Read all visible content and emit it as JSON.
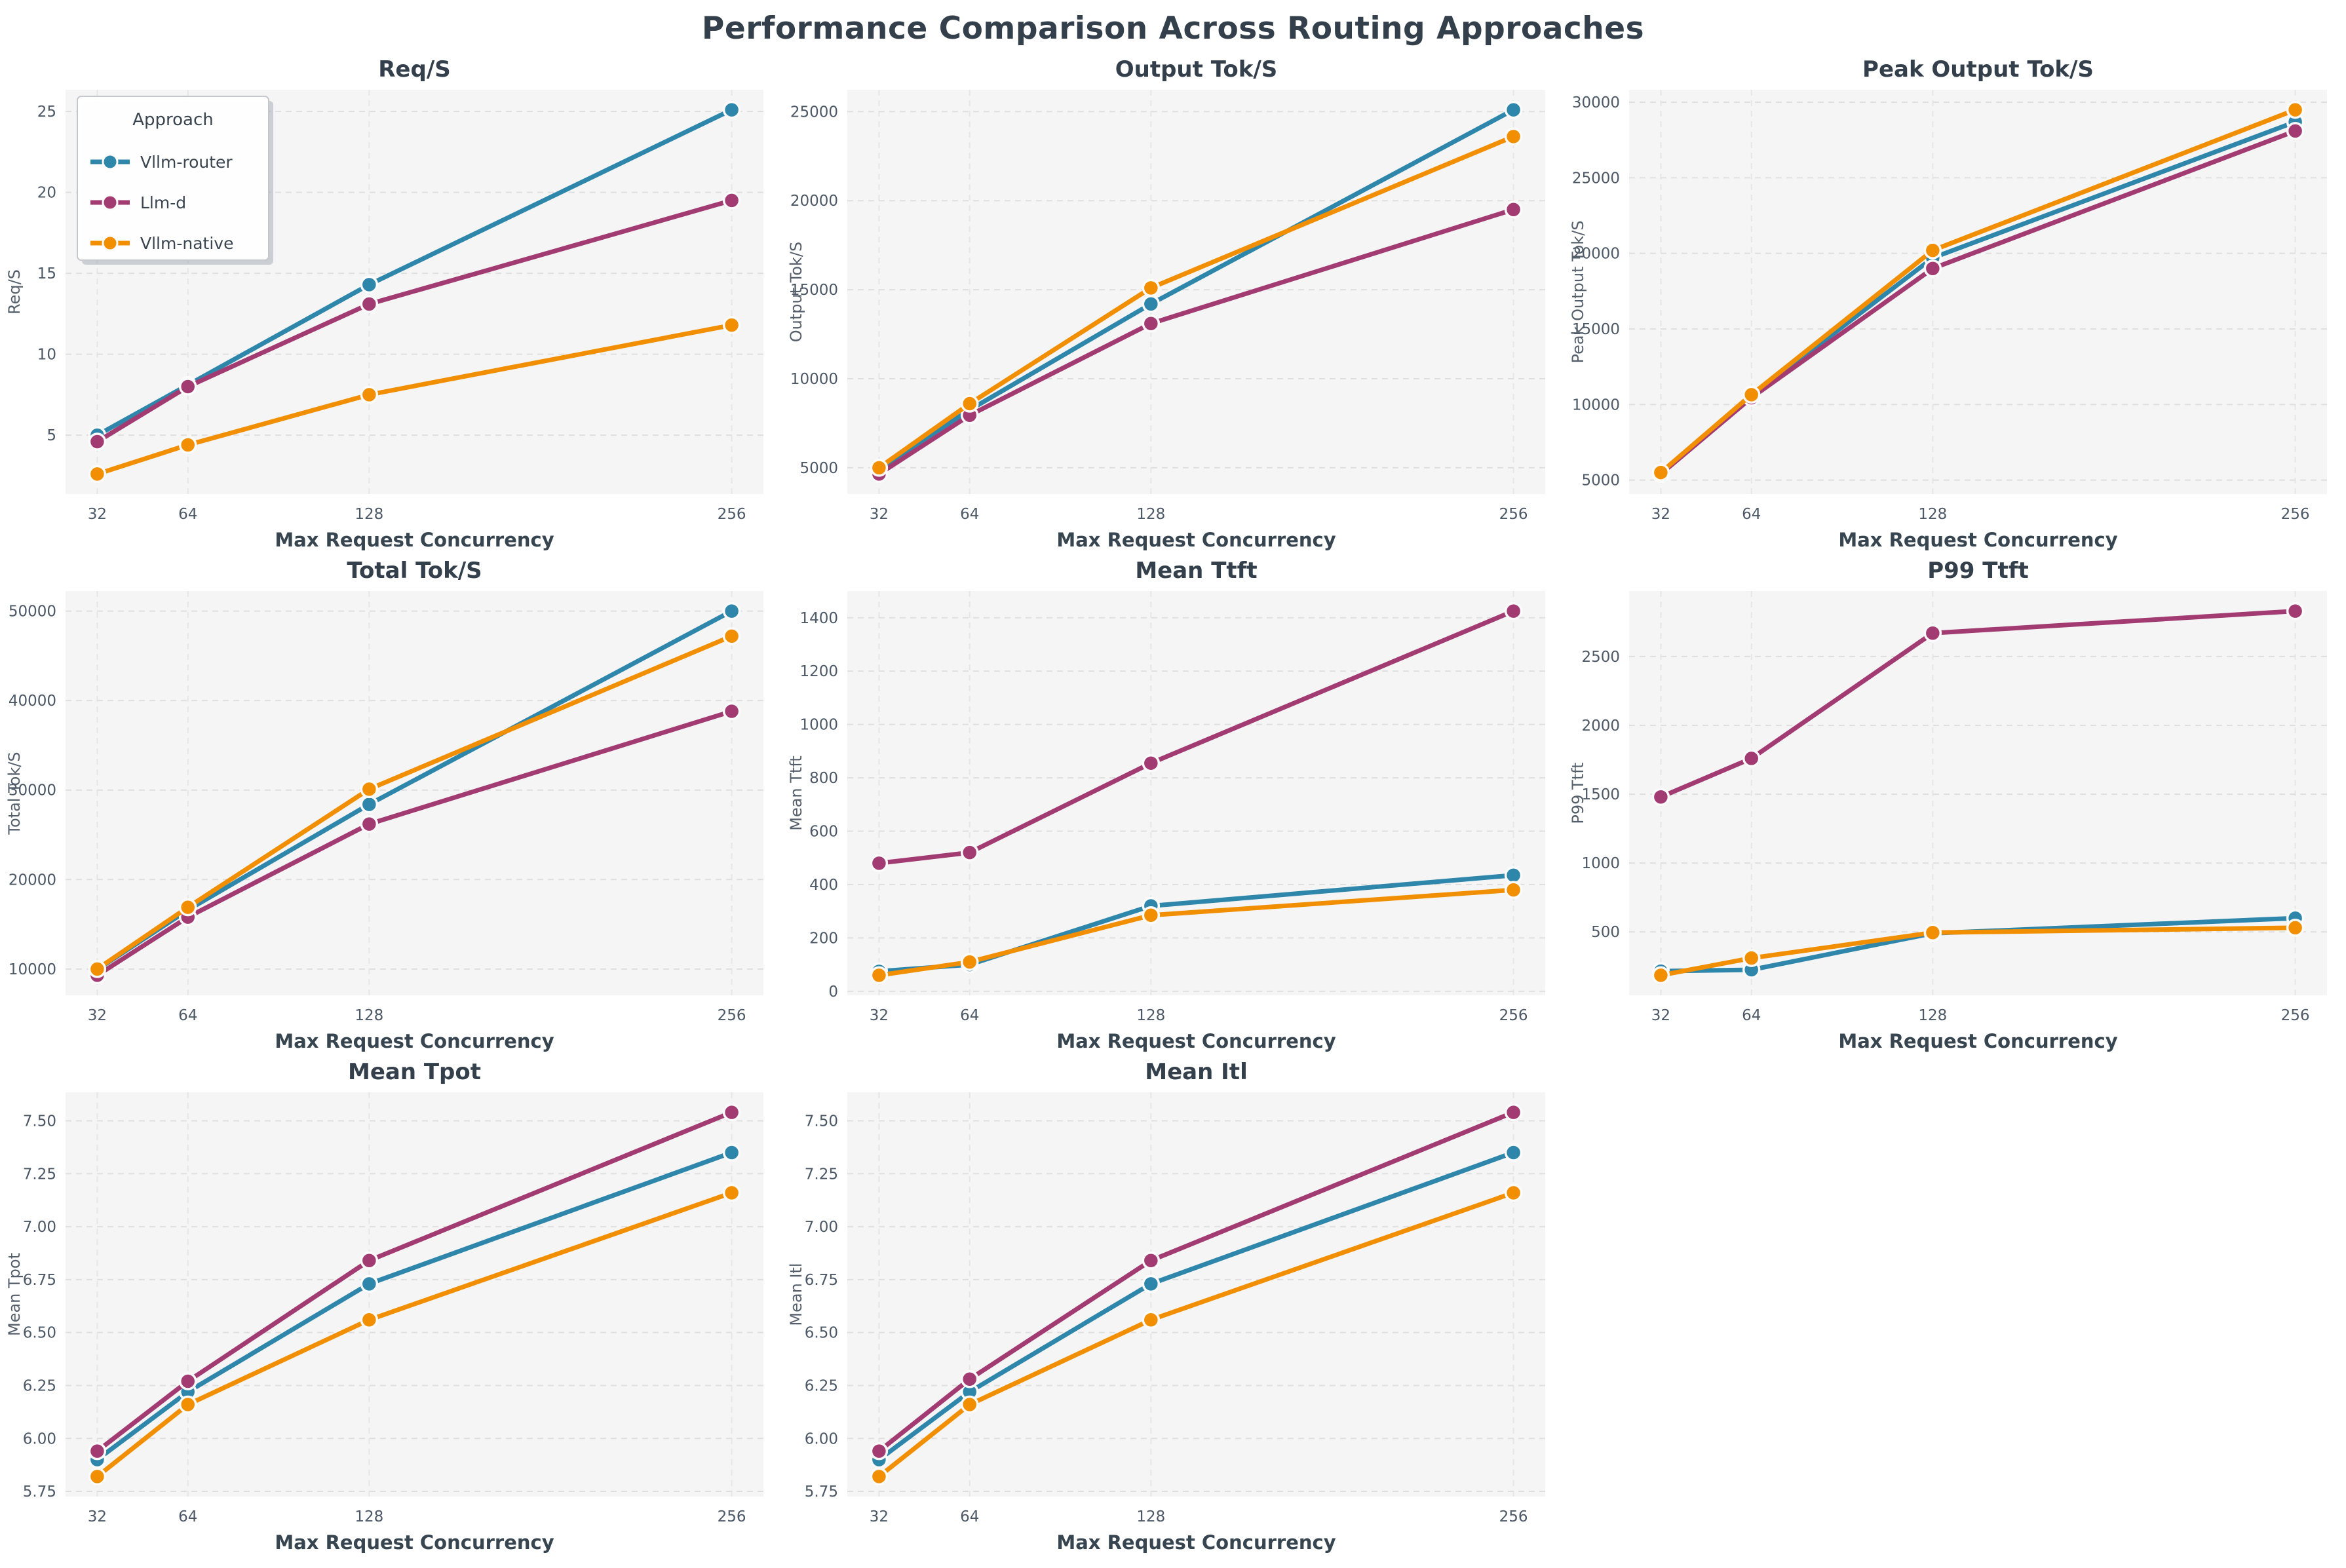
{
  "page_title": "Performance Comparison Across Routing Approaches",
  "x_axis": {
    "label": "Max Request Concurrency",
    "ticks": [
      32,
      64,
      128,
      256
    ],
    "tick_labels": [
      "32",
      "64",
      "128",
      "256"
    ]
  },
  "legend": {
    "title": "Approach",
    "entries": [
      {
        "label": "Vllm-router",
        "color": "#2E86AB"
      },
      {
        "label": "Llm-d",
        "color": "#A23B72"
      },
      {
        "label": "Vllm-native",
        "color": "#F18F01"
      }
    ]
  },
  "colors": {
    "figure_bg": "#FFFFFF",
    "plot_bg": "#F5F5F6",
    "grid": "#DFDFDF",
    "title_text": "#333F4B",
    "tick_text": "#4C5866",
    "series_blue": "#2E86AB",
    "series_magenta": "#A23B72",
    "series_orange": "#F18F01"
  },
  "chart_data": [
    {
      "type": "line",
      "title": "Req/S",
      "ylabel": "Req/S",
      "xlabel": "Max Request Concurrency",
      "x": [
        32,
        64,
        128,
        256
      ],
      "yticks": [
        5,
        10,
        15,
        20,
        25
      ],
      "ytick_labels": [
        "5",
        "10",
        "15",
        "20",
        "25"
      ],
      "show_legend": true,
      "series": [
        {
          "name": "Vllm-router",
          "color": "#2E86AB",
          "values": [
            5.0,
            8.1,
            14.3,
            25.1
          ]
        },
        {
          "name": "Llm-d",
          "color": "#A23B72",
          "values": [
            4.6,
            8.0,
            13.1,
            19.5
          ]
        },
        {
          "name": "Vllm-native",
          "color": "#F18F01",
          "values": [
            2.6,
            4.4,
            7.5,
            11.8
          ]
        }
      ]
    },
    {
      "type": "line",
      "title": "Output Tok/S",
      "ylabel": "Output Tok/S",
      "xlabel": "Max Request Concurrency",
      "x": [
        32,
        64,
        128,
        256
      ],
      "yticks": [
        5000,
        10000,
        15000,
        20000,
        25000
      ],
      "ytick_labels": [
        "5000",
        "10000",
        "15000",
        "20000",
        "25000"
      ],
      "show_legend": false,
      "series": [
        {
          "name": "Vllm-router",
          "color": "#2E86AB",
          "values": [
            4950,
            8250,
            14200,
            25100
          ]
        },
        {
          "name": "Llm-d",
          "color": "#A23B72",
          "values": [
            4650,
            7950,
            13100,
            19500
          ]
        },
        {
          "name": "Vllm-native",
          "color": "#F18F01",
          "values": [
            5000,
            8600,
            15100,
            23600
          ]
        }
      ]
    },
    {
      "type": "line",
      "title": "Peak Output Tok/S",
      "ylabel": "Peak Output Tok/S",
      "xlabel": "Max Request Concurrency",
      "x": [
        32,
        64,
        128,
        256
      ],
      "yticks": [
        5000,
        10000,
        15000,
        20000,
        25000,
        30000
      ],
      "ytick_labels": [
        "5000",
        "10000",
        "15000",
        "20000",
        "25000",
        "30000"
      ],
      "show_legend": false,
      "series": [
        {
          "name": "Vllm-router",
          "color": "#2E86AB",
          "values": [
            5450,
            10550,
            19700,
            28700
          ]
        },
        {
          "name": "Llm-d",
          "color": "#A23B72",
          "values": [
            5400,
            10450,
            19000,
            28100
          ]
        },
        {
          "name": "Vllm-native",
          "color": "#F18F01",
          "values": [
            5500,
            10650,
            20200,
            29500
          ]
        }
      ]
    },
    {
      "type": "line",
      "title": "Total Tok/S",
      "ylabel": "Total Tok/S",
      "xlabel": "Max Request Concurrency",
      "x": [
        32,
        64,
        128,
        256
      ],
      "yticks": [
        10000,
        20000,
        30000,
        40000,
        50000
      ],
      "ytick_labels": [
        "10000",
        "20000",
        "30000",
        "40000",
        "50000"
      ],
      "show_legend": false,
      "series": [
        {
          "name": "Vllm-router",
          "color": "#2E86AB",
          "values": [
            9950,
            16600,
            28400,
            50000
          ]
        },
        {
          "name": "Llm-d",
          "color": "#A23B72",
          "values": [
            9300,
            15800,
            26200,
            38800
          ]
        },
        {
          "name": "Vllm-native",
          "color": "#F18F01",
          "values": [
            10000,
            16900,
            30100,
            47200
          ]
        }
      ]
    },
    {
      "type": "line",
      "title": "Mean Ttft",
      "ylabel": "Mean Ttft",
      "xlabel": "Max Request Concurrency",
      "x": [
        32,
        64,
        128,
        256
      ],
      "yticks": [
        0,
        200,
        400,
        600,
        800,
        1000,
        1200,
        1400
      ],
      "ytick_labels": [
        "0",
        "200",
        "400",
        "600",
        "800",
        "1000",
        "1200",
        "1400"
      ],
      "show_legend": false,
      "series": [
        {
          "name": "Vllm-router",
          "color": "#2E86AB",
          "values": [
            75,
            100,
            320,
            435
          ]
        },
        {
          "name": "Llm-d",
          "color": "#A23B72",
          "values": [
            480,
            520,
            855,
            1425
          ]
        },
        {
          "name": "Vllm-native",
          "color": "#F18F01",
          "values": [
            60,
            110,
            285,
            380
          ]
        }
      ]
    },
    {
      "type": "line",
      "title": "P99 Ttft",
      "ylabel": "P99 Ttft",
      "xlabel": "Max Request Concurrency",
      "x": [
        32,
        64,
        128,
        256
      ],
      "yticks": [
        500,
        1000,
        1500,
        2000,
        2500
      ],
      "ytick_labels": [
        "500",
        "1000",
        "1500",
        "2000",
        "2500"
      ],
      "show_legend": false,
      "series": [
        {
          "name": "Vllm-router",
          "color": "#2E86AB",
          "values": [
            215,
            225,
            490,
            600
          ]
        },
        {
          "name": "Llm-d",
          "color": "#A23B72",
          "values": [
            1480,
            1760,
            2670,
            2830
          ]
        },
        {
          "name": "Vllm-native",
          "color": "#F18F01",
          "values": [
            185,
            310,
            495,
            530
          ]
        }
      ]
    },
    {
      "type": "line",
      "title": "Mean Tpot",
      "ylabel": "Mean Tpot",
      "xlabel": "Max Request Concurrency",
      "x": [
        32,
        64,
        128,
        256
      ],
      "yticks": [
        5.75,
        6.0,
        6.25,
        6.5,
        6.75,
        7.0,
        7.25,
        7.5
      ],
      "ytick_labels": [
        "5.75",
        "6.00",
        "6.25",
        "6.50",
        "6.75",
        "7.00",
        "7.25",
        "7.50"
      ],
      "show_legend": false,
      "series": [
        {
          "name": "Vllm-router",
          "color": "#2E86AB",
          "values": [
            5.9,
            6.22,
            6.73,
            7.35
          ]
        },
        {
          "name": "Llm-d",
          "color": "#A23B72",
          "values": [
            5.94,
            6.27,
            6.84,
            7.54
          ]
        },
        {
          "name": "Vllm-native",
          "color": "#F18F01",
          "values": [
            5.82,
            6.16,
            6.56,
            7.16
          ]
        }
      ]
    },
    {
      "type": "line",
      "title": "Mean Itl",
      "ylabel": "Mean Itl",
      "xlabel": "Max Request Concurrency",
      "x": [
        32,
        64,
        128,
        256
      ],
      "yticks": [
        5.75,
        6.0,
        6.25,
        6.5,
        6.75,
        7.0,
        7.25,
        7.5
      ],
      "ytick_labels": [
        "5.75",
        "6.00",
        "6.25",
        "6.50",
        "6.75",
        "7.00",
        "7.25",
        "7.50"
      ],
      "show_legend": false,
      "series": [
        {
          "name": "Vllm-router",
          "color": "#2E86AB",
          "values": [
            5.9,
            6.22,
            6.73,
            7.35
          ]
        },
        {
          "name": "Llm-d",
          "color": "#A23B72",
          "values": [
            5.94,
            6.28,
            6.84,
            7.54
          ]
        },
        {
          "name": "Vllm-native",
          "color": "#F18F01",
          "values": [
            5.82,
            6.16,
            6.56,
            7.16
          ]
        }
      ]
    }
  ]
}
